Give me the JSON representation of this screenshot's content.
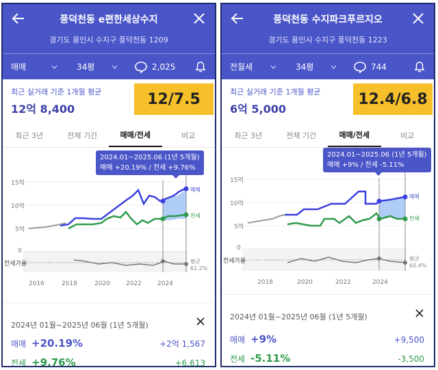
{
  "panels": [
    {
      "title": "풍덕천동 e편한세상수지",
      "address": "경기도 용인시 수지구 풍덕천동 1209",
      "trade_type": "매매",
      "size": "34평",
      "comments": "2,025",
      "summary_caption": "최근 실거래 기준 1개월 평균",
      "summary_price": "12억 8,400",
      "note": "12/7.5",
      "tabs": [
        "최근 3년",
        "전체 기간",
        "매매/전세",
        "비교"
      ],
      "active_tab": 2,
      "tooltip_line1": "2024.01~2025.06 (1년 5개월)",
      "tooltip_line2": "매매 +20.19%  /  전세 +9.76%",
      "y_ticks": [
        "15억",
        "10억",
        "5억",
        "0"
      ],
      "x_ticks": [
        "2016",
        "2018",
        "2020",
        "2022",
        "2024"
      ],
      "legend_sale": "매매",
      "legend_jeonse": "전세",
      "ratio_label": "전세가율",
      "avg_label": "평균",
      "avg_value": "61.2%",
      "detail_period": "2024년 01월~2025년 06월 (1년 5개월)",
      "sale_label": "매매",
      "sale_pct": "+20.19%",
      "sale_amount": "+2억 1,567",
      "jeonse_label": "전세",
      "jeonse_pct": "+9.76%",
      "jeonse_amount": "+6,613"
    },
    {
      "title": "풍덕천동 수지파크푸르지오",
      "address": "경기도 용인시 수지구 풍덕천동 1223",
      "trade_type": "전월세",
      "size": "34평",
      "comments": "744",
      "summary_caption": "최근 실거래 기준 1개월 평균",
      "summary_price": "6억 5,000",
      "note": "12.4/6.8",
      "tabs": [
        "최근 3년",
        "전체 기간",
        "매매/전세",
        "비교"
      ],
      "active_tab": 2,
      "tooltip_line1": "2024.01~2025.06 (1년 5개월)",
      "tooltip_line2": "매매 +9%  /  전세 -5.11%",
      "y_ticks": [
        "15억",
        "10억",
        "5억",
        "0"
      ],
      "x_ticks": [
        "2018",
        "2020",
        "2022",
        "2024"
      ],
      "legend_sale": "매매",
      "legend_jeonse": "전세",
      "ratio_label": "전세가율",
      "avg_label": "평균",
      "avg_value": "60.4%",
      "detail_period": "2024년 01월~2025년 06월 (1년 5개월)",
      "sale_label": "매매",
      "sale_pct": "+9%",
      "sale_amount": "+9,500",
      "jeonse_label": "전세",
      "jeonse_pct": "-5.11%",
      "jeonse_amount": "-3,500"
    }
  ],
  "colors": {
    "header": "#4a55c8",
    "sale": "#3b3fe0",
    "jeonse": "#2e9a4b",
    "note_bg": "#f7c02a",
    "border": "#1f2a6b"
  },
  "icons": [
    "back-arrow-icon",
    "close-icon",
    "chevron-down-icon",
    "comment-bubble-icon",
    "bell-icon"
  ]
}
